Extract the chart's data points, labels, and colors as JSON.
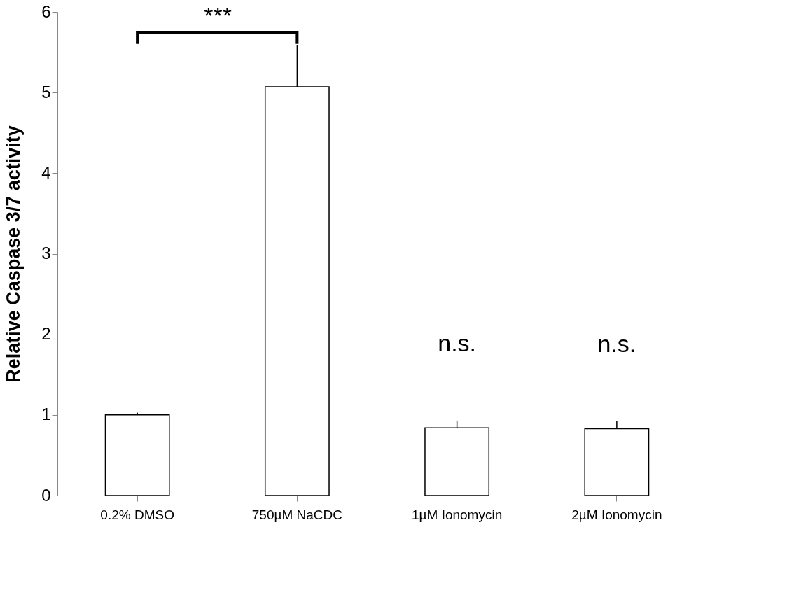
{
  "chart_data": {
    "type": "bar",
    "ylabel": "Relative Caspase 3/7 activity",
    "categories": [
      "0.2% DMSO",
      "750µM NaCDC",
      "1µM Ionomycin",
      "2µM Ionomycin"
    ],
    "values": [
      1.0,
      5.07,
      0.84,
      0.83
    ],
    "errors": [
      0.03,
      0.52,
      0.09,
      0.09
    ],
    "color": "#ffffff",
    "ylim": [
      0,
      6
    ],
    "yticks": [
      0,
      1,
      2,
      3,
      4,
      5,
      6
    ],
    "grid": false,
    "annotations": [
      "***",
      "n.s.",
      "n.s."
    ]
  }
}
